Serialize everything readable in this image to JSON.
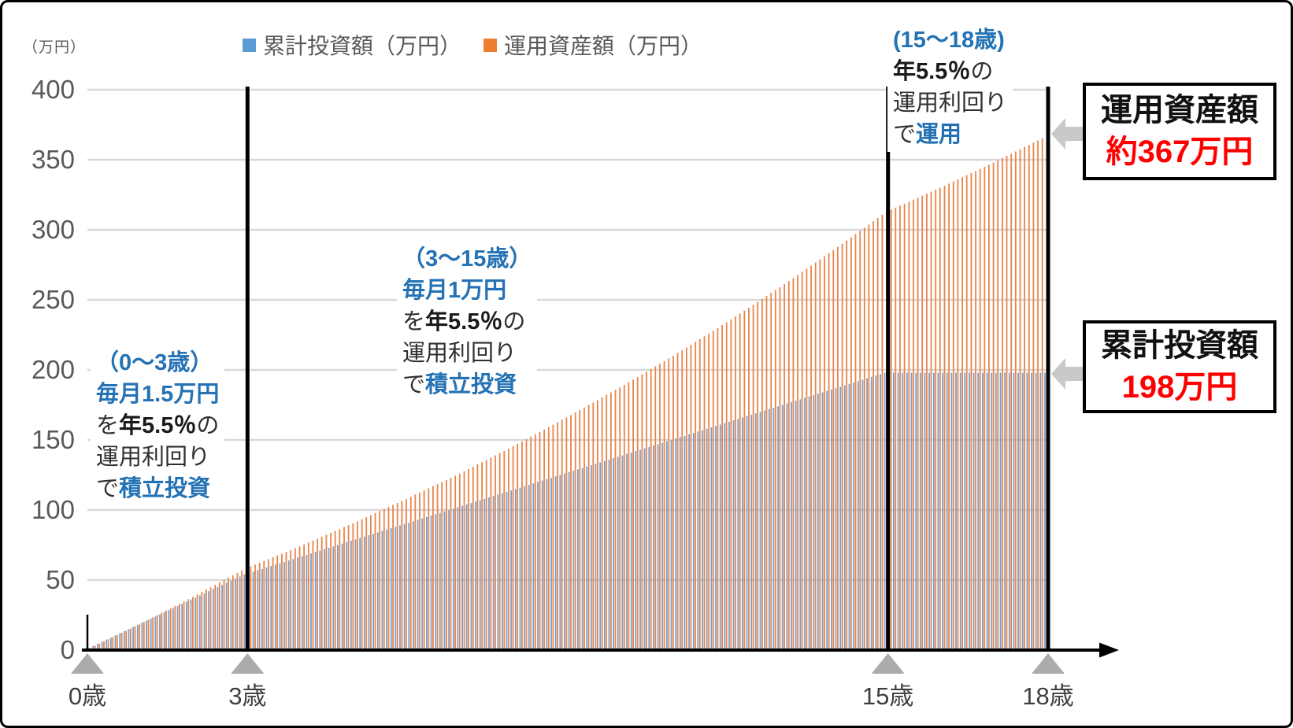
{
  "colors": {
    "blue_text": "#2472B4",
    "red_value": "#FF0000",
    "gray_text": "#595959",
    "axis_label": "#3F3F3F",
    "grid": "#D9D9D9",
    "bar_blue": "#7C9CC6",
    "bar_orange": "#E8854A",
    "legend_blue": "#5B9BD5",
    "legend_orange": "#ED7D31",
    "marker": "#ABABAB",
    "arrow": "#C9C9C9"
  },
  "unit_label": "（万円）",
  "legend": {
    "items": [
      {
        "label": "累計投資額（万円）",
        "color": "#5B9BD5"
      },
      {
        "label": "運用資産額（万円）",
        "color": "#ED7D31"
      }
    ]
  },
  "annotations": {
    "a1": {
      "l1": "（0～3歳）",
      "l2": "毎月1.5万円",
      "l3a": "を",
      "l3b": "年5.5％",
      "l3c": "の",
      "l4": "運用利回り",
      "l5a": "で",
      "l5b": "積立投資"
    },
    "a2": {
      "l1": "（3～15歳）",
      "l2": "毎月1万円",
      "l3a": "を",
      "l3b": "年5.5％",
      "l3c": "の",
      "l4": "運用利回り",
      "l5a": "で",
      "l5b": "積立投資"
    },
    "a3": {
      "l1": "(15～18歳)",
      "l2b": "年5.5％",
      "l2c": "の",
      "l3": "運用利回り",
      "l4a": "で",
      "l4b": "運用"
    }
  },
  "callouts": {
    "asset": {
      "title": "運用資産額",
      "value": "約367万円"
    },
    "invest": {
      "title": "累計投資額",
      "value": "198万円"
    }
  },
  "chart_data": {
    "type": "bar",
    "unit_label": "（万円）",
    "x_tick_labels": [
      "0歳",
      "3歳",
      "15歳",
      "18歳"
    ],
    "x_tick_years": [
      0,
      3,
      15,
      18
    ],
    "event_lines_years": [
      3,
      15,
      18
    ],
    "y_ticks": [
      0,
      50,
      100,
      150,
      200,
      250,
      300,
      350,
      400
    ],
    "ylim": [
      0,
      400
    ],
    "x_range_years": [
      0,
      18
    ],
    "bars_per_year": 12,
    "grid": true,
    "legend_position": "top",
    "series": [
      {
        "name": "累計投資額（万円）",
        "bar_color": "#7C9CC6",
        "legend_color": "#5B9BD5",
        "yearly_values": [
          0,
          18,
          36,
          54,
          66,
          78,
          90,
          102,
          114,
          126,
          138,
          150,
          162,
          174,
          186,
          198,
          198,
          198,
          198
        ]
      },
      {
        "name": "運用資産額（万円）",
        "bar_color": "#E8854A",
        "legend_color": "#ED7D31",
        "yearly_values": [
          0,
          18.5,
          38,
          58.5,
          74,
          90.5,
          108,
          126,
          145.5,
          166,
          187.5,
          210,
          234,
          259,
          285.5,
          313,
          330,
          348,
          367
        ]
      }
    ],
    "annotated_values": {
      "asset_at_18": "約367万円",
      "invested_total": "198万円"
    }
  }
}
